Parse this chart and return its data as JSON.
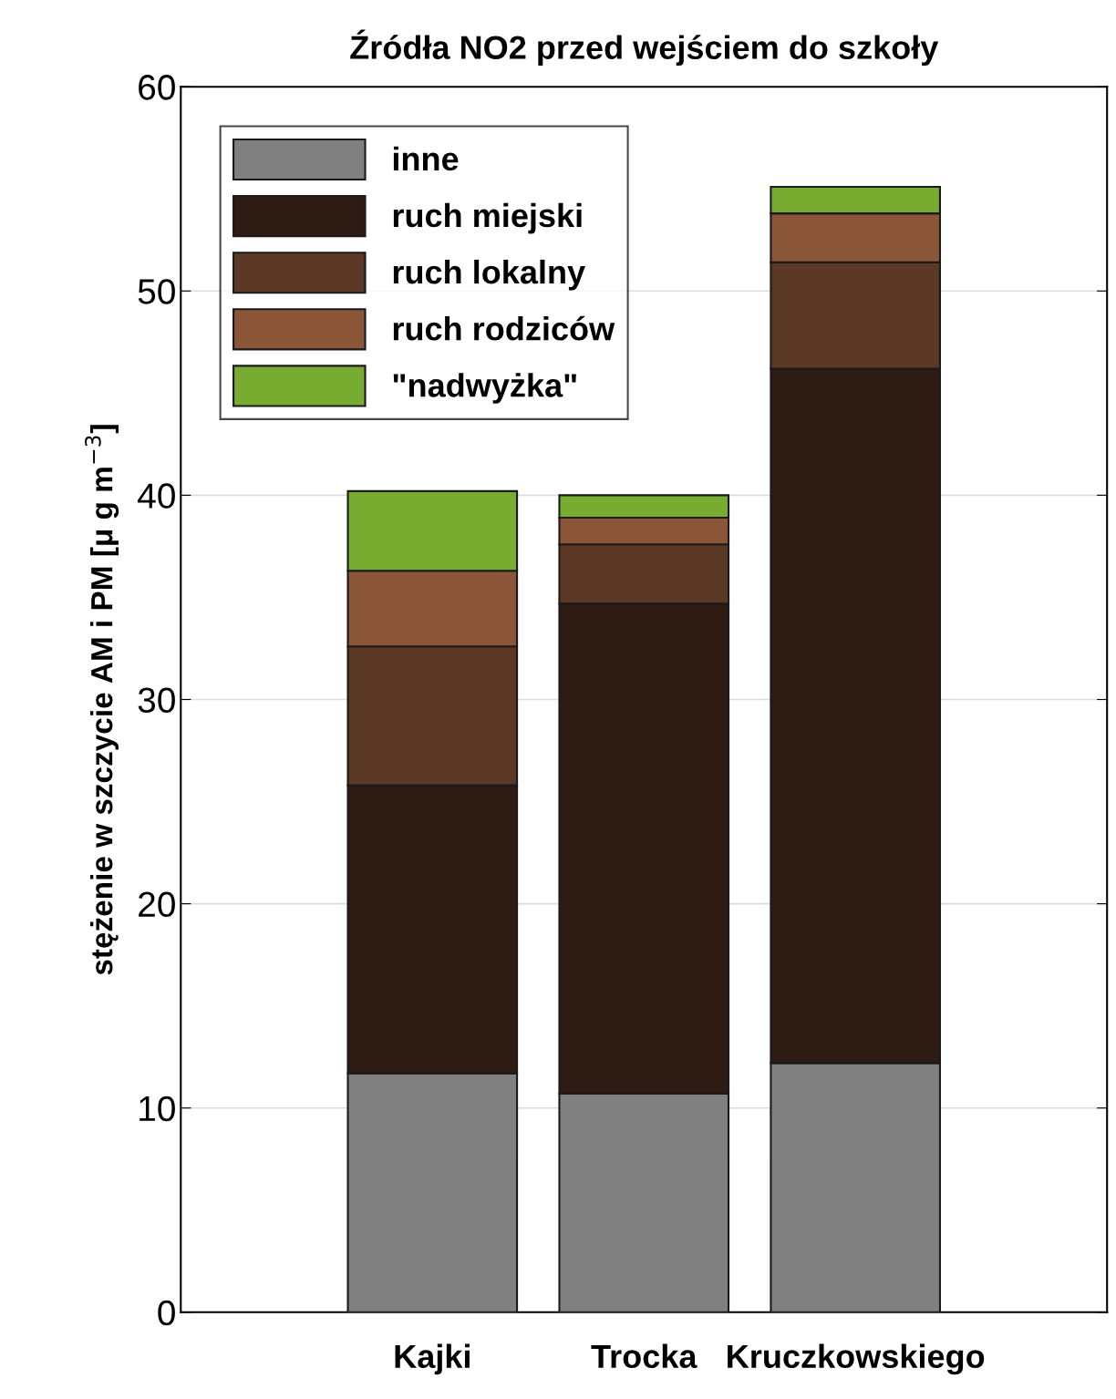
{
  "chart_data": {
    "type": "bar",
    "stacked": true,
    "title": "Źródła NO2 przed wejściem do szkoły",
    "ylabel": "stężenie w szczycie AM i PM [μ g m$^{−3}$]",
    "categories": [
      "Kajki",
      "Trocka",
      "Kruczkowskiego"
    ],
    "series": [
      {
        "name": "inne",
        "color": "#808080",
        "values": [
          11.7,
          10.7,
          12.2
        ]
      },
      {
        "name": "ruch miejski",
        "color": "#2e1b13",
        "values": [
          14.1,
          24.0,
          34.0
        ]
      },
      {
        "name": "ruch lokalny",
        "color": "#5c3826",
        "values": [
          6.8,
          2.9,
          5.2
        ]
      },
      {
        "name": "ruch rodziców",
        "color": "#8b5538",
        "values": [
          3.7,
          1.3,
          2.4
        ]
      },
      {
        "name": "\"nadwyżka\"",
        "color": "#77ac30",
        "values": [
          3.9,
          1.1,
          1.3
        ]
      }
    ],
    "ylim": [
      0,
      60
    ],
    "yticks": [
      0,
      10,
      20,
      30,
      40,
      50,
      60
    ],
    "grid": "y",
    "legend": "top left"
  }
}
